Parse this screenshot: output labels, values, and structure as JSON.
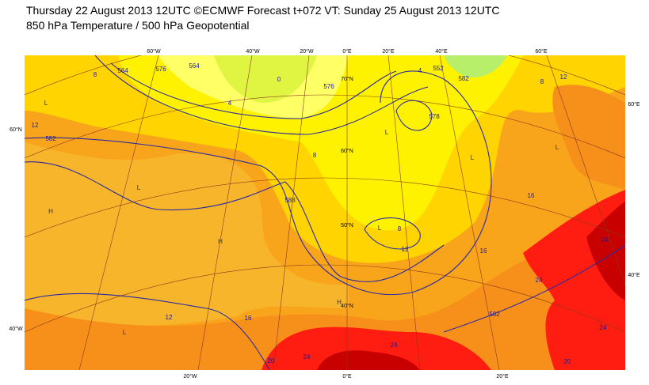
{
  "header": {
    "title": "Thursday 22 August 2013 12UTC ©ECMWF Forecast t+072 VT: Sunday 25 August 2013 12UTC",
    "subtitle": "850 hPa Temperature / 500 hPa Geopotential"
  },
  "map": {
    "top_labels": [
      "60°W",
      "40°W",
      "20°W",
      "0°E",
      "20°E",
      "40°E",
      "60°E"
    ],
    "left_labels": [
      "60°N",
      "40°W"
    ],
    "right_labels": [
      "60°E",
      "40°E"
    ],
    "bottom_labels": [
      "20°W",
      "0°E",
      "20°E"
    ],
    "lat_labels": [
      "70°N",
      "60°N",
      "50°N",
      "40°N"
    ],
    "contour_labels": [
      "8",
      "564",
      "576",
      "564",
      "12",
      "582",
      "0",
      "4",
      "8",
      "588",
      "576",
      "578",
      "4",
      "552",
      "582",
      "8",
      "12",
      "8",
      "12",
      "16",
      "16",
      "24",
      "24",
      "24",
      "20",
      "582",
      "12",
      "16",
      "20",
      "24",
      "24"
    ],
    "pressure_centres": [
      "L",
      "L",
      "H",
      "H",
      "L",
      "L",
      "L",
      "L",
      "L",
      "H"
    ]
  }
}
